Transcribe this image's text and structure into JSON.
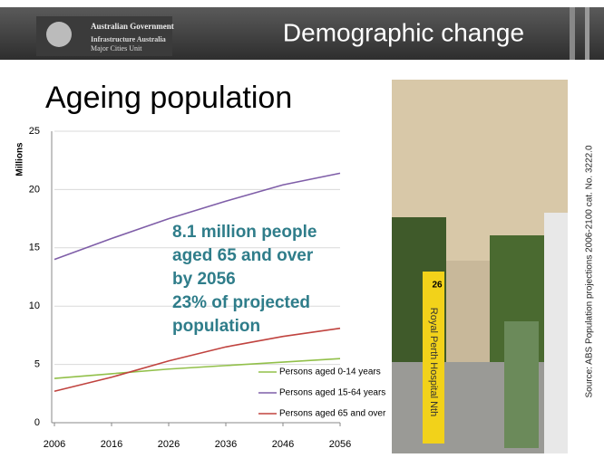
{
  "header": {
    "org_lines": [
      "Australian Government",
      "Infrastructure Australia",
      "Major Cities Unit"
    ],
    "title": "Demographic change"
  },
  "heading": "Ageing population",
  "photo": {
    "route": "26",
    "sign": "Royal Perth Hospital Nth"
  },
  "source": "Source: ABS Population projections 2006-2100 cat. No. 3222.0",
  "chart_data": {
    "type": "line",
    "y_label": "Millions",
    "x": [
      2006,
      2016,
      2026,
      2036,
      2046,
      2056
    ],
    "xlim": [
      2006,
      2056
    ],
    "xticks": [
      2006,
      2016,
      2026,
      2036,
      2046,
      2056
    ],
    "ylim": [
      0,
      25
    ],
    "yticks": [
      0,
      5,
      10,
      15,
      20,
      25
    ],
    "grid": true,
    "series": [
      {
        "name": "Persons aged 0-14 years",
        "color": "#92c04a",
        "values": [
          3.8,
          4.2,
          4.6,
          4.9,
          5.2,
          5.5
        ]
      },
      {
        "name": "Persons aged 15-64 years",
        "color": "#7f5ea8",
        "values": [
          14.0,
          15.8,
          17.5,
          19.0,
          20.4,
          21.4
        ]
      },
      {
        "name": "Persons aged 65 and over",
        "color": "#c0433f",
        "values": [
          2.7,
          3.9,
          5.3,
          6.5,
          7.4,
          8.1
        ]
      }
    ],
    "annotations": [
      "8.1 million people",
      "aged 65 and over",
      "by 2056",
      "23% of projected",
      "population"
    ]
  }
}
